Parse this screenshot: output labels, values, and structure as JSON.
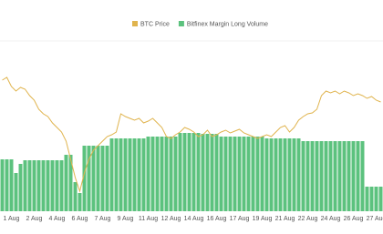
{
  "chart_data": {
    "type": "bar_line",
    "categories": [
      null,
      null,
      "1 Aug",
      null,
      null,
      null,
      null,
      "2 Aug",
      null,
      null,
      null,
      null,
      "4 Aug",
      null,
      null,
      null,
      null,
      "6 Aug",
      null,
      null,
      null,
      null,
      "7 Aug",
      null,
      null,
      null,
      null,
      "9 Aug",
      null,
      null,
      null,
      null,
      "11 Aug",
      null,
      null,
      null,
      null,
      "12 Aug",
      null,
      null,
      null,
      null,
      "14 Aug",
      null,
      null,
      null,
      null,
      "16 Aug",
      null,
      null,
      null,
      null,
      "17 Aug",
      null,
      null,
      null,
      null,
      "19 Aug",
      null,
      null,
      null,
      null,
      "21 Aug",
      null,
      null,
      null,
      null,
      "22 Aug",
      null,
      null,
      null,
      null,
      "24 Aug",
      null,
      null,
      null,
      null,
      "26 Aug",
      null,
      null,
      null,
      null,
      "27 Aug",
      null
    ],
    "series": [
      {
        "name": "BTC Price",
        "color": "#e0b44e",
        "axis": "y2",
        "values": [
          144,
          147,
          137,
          132,
          136,
          134,
          127,
          122,
          112,
          107,
          104,
          97,
          92,
          87,
          77,
          57,
          37,
          22,
          42,
          57,
          67,
          72,
          77,
          82,
          84,
          87,
          107,
          104,
          102,
          100,
          102,
          97,
          99,
          102,
          97,
          92,
          82,
          80,
          84,
          87,
          92,
          90,
          87,
          82,
          84,
          89,
          82,
          84,
          87,
          89,
          86,
          88,
          90,
          86,
          84,
          82,
          80,
          82,
          84,
          82,
          87,
          92,
          94,
          87,
          92,
          100,
          104,
          107,
          108,
          112,
          127,
          132,
          130,
          132,
          129,
          132,
          130,
          127,
          129,
          127,
          124,
          126,
          122,
          120
        ]
      },
      {
        "name": "Bitfinex Margin Long Volume",
        "color": "#5cc27e",
        "values": [
          57,
          57,
          57,
          42,
          52,
          56,
          56,
          56,
          56,
          56,
          56,
          56,
          56,
          56,
          62,
          62,
          32,
          20,
          72,
          72,
          72,
          72,
          72,
          72,
          80,
          80,
          80,
          80,
          80,
          80,
          80,
          80,
          82,
          82,
          82,
          82,
          82,
          82,
          82,
          86,
          86,
          86,
          86,
          86,
          85,
          85,
          85,
          85,
          82,
          82,
          82,
          82,
          82,
          82,
          82,
          82,
          82,
          82,
          80,
          80,
          80,
          80,
          80,
          80,
          80,
          80,
          77,
          77,
          77,
          77,
          77,
          77,
          77,
          77,
          77,
          77,
          77,
          77,
          77,
          77,
          27,
          27,
          27,
          27
        ]
      }
    ],
    "ylim": [
      0,
      200
    ],
    "y2lim": [
      0,
      200
    ],
    "legend": "top"
  }
}
